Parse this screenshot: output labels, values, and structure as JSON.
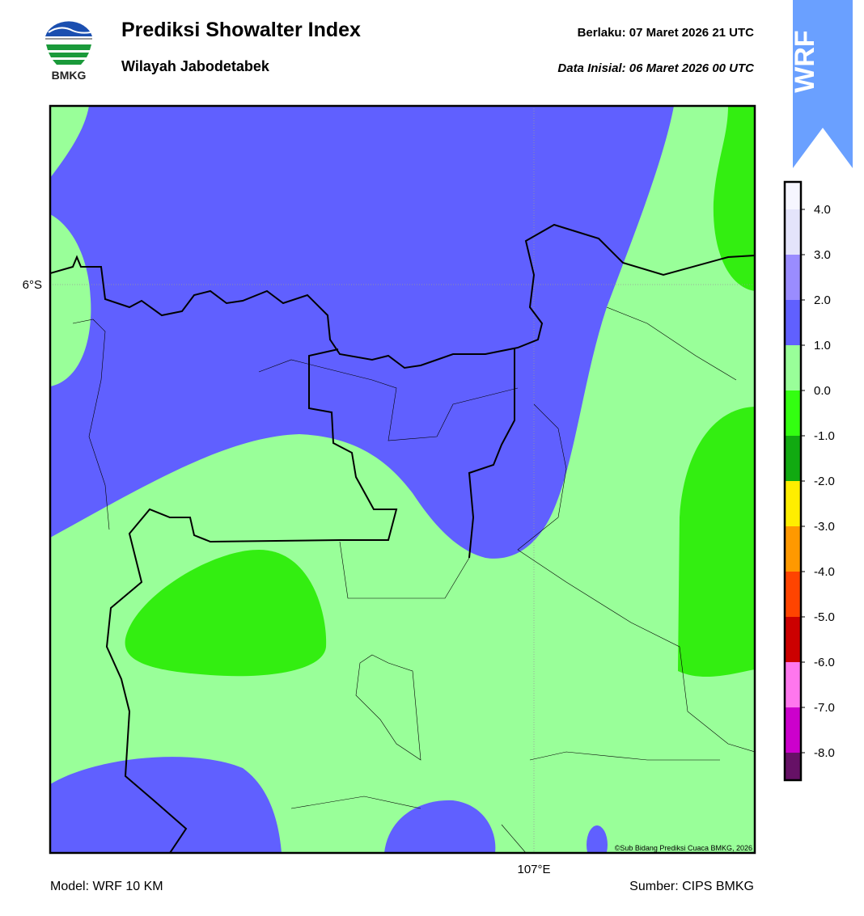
{
  "header": {
    "logo_text": "BMKG",
    "title": "Prediksi Showalter Index",
    "subtitle": "Wilayah Jabodetabek",
    "valid": "Berlaku:  07 Maret 2026 21 UTC",
    "init": "Data Inisial:  06 Maret 2026 00 UTC",
    "badge": "WRF"
  },
  "map": {
    "lat_label": "6°S",
    "lon_label": "107°E",
    "credit": "©Sub Bidang Prediksi Cuaca BMKG, 2026"
  },
  "colorbar": {
    "colors": [
      "#f6f6ff",
      "#e4e4fb",
      "#9a8cff",
      "#6060ff",
      "#99ff99",
      "#33ff11",
      "#11aa11",
      "#ffee00",
      "#ff9900",
      "#ff4400",
      "#cc0000",
      "#ff77ee",
      "#cc00cc",
      "#661166"
    ],
    "ticks": [
      {
        "value": 4,
        "label": "4.0"
      },
      {
        "value": 3,
        "label": "3.0"
      },
      {
        "value": 2,
        "label": "2.0"
      },
      {
        "value": 1,
        "label": "1.0"
      },
      {
        "value": 0,
        "label": "0.0"
      },
      {
        "value": -1,
        "label": "-1.0"
      },
      {
        "value": -2,
        "label": "-2.0"
      },
      {
        "value": -3,
        "label": "-3.0"
      },
      {
        "value": -4,
        "label": "-4.0"
      },
      {
        "value": -5,
        "label": "-5.0"
      },
      {
        "value": -6,
        "label": "-6.0"
      },
      {
        "value": -7,
        "label": "-7.0"
      },
      {
        "value": -8,
        "label": "-8.0"
      }
    ]
  },
  "footer": {
    "model": "Model: WRF 10 KM",
    "source": "Sumber: CIPS BMKG"
  }
}
